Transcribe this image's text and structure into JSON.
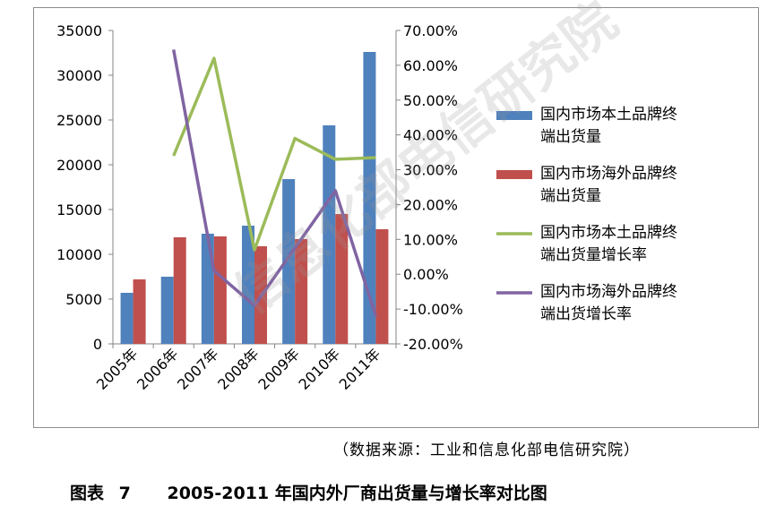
{
  "chart_data": {
    "type": "bar+line",
    "categories": [
      "2005年",
      "2006年",
      "2007年",
      "2008年",
      "2009年",
      "2010年",
      "2011年"
    ],
    "bar_series": [
      {
        "name": "国内市场本土品牌终端出货量",
        "color": "#4f81bd",
        "values": [
          5700,
          7500,
          12300,
          13200,
          18400,
          24400,
          32600
        ]
      },
      {
        "name": "国内市场海外品牌终端出货量",
        "color": "#c0504d",
        "values": [
          7200,
          11900,
          12000,
          10900,
          11700,
          14500,
          12800
        ]
      }
    ],
    "line_series": [
      {
        "name": "国内市场本土品牌终端出货量增长率",
        "color": "#9bbb59",
        "values": [
          null,
          0.34,
          0.62,
          0.07,
          0.39,
          0.33,
          0.335
        ]
      },
      {
        "name": "国内市场海外品牌终端出货增长率",
        "color": "#8064a2",
        "values": [
          null,
          0.645,
          0.01,
          -0.09,
          0.075,
          0.24,
          -0.12
        ]
      }
    ],
    "y_left": {
      "min": 0,
      "max": 35000,
      "step": 5000,
      "ticks": [
        "0",
        "5000",
        "10000",
        "15000",
        "20000",
        "25000",
        "30000",
        "35000"
      ]
    },
    "y_right": {
      "min": -0.2,
      "max": 0.7,
      "step": 0.1,
      "ticks": [
        "-20.00%",
        "-10.00%",
        "0.00%",
        "10.00%",
        "20.00%",
        "30.00%",
        "40.00%",
        "50.00%",
        "60.00%",
        "70.00%"
      ]
    },
    "legend_position": "right",
    "grid": false
  },
  "legend": [
    {
      "lines": [
        "国内市场本土品牌终",
        "端出货量"
      ],
      "color": "#4f81bd",
      "kind": "box"
    },
    {
      "lines": [
        "国内市场海外品牌终",
        "端出货量"
      ],
      "color": "#c0504d",
      "kind": "box"
    },
    {
      "lines": [
        "国内市场本土品牌终",
        "端出货量增长率"
      ],
      "color": "#9bbb59",
      "kind": "line"
    },
    {
      "lines": [
        "国内市场海外品牌终",
        "端出货增长率"
      ],
      "color": "#8064a2",
      "kind": "line"
    }
  ],
  "source_note": "（数据来源：工业和信息化部电信研究院）",
  "caption": {
    "label": "图表",
    "number": "7",
    "title": "2005-2011 年国内外厂商出货量与增长率对比图"
  },
  "watermark": "信息化部电信研究院"
}
